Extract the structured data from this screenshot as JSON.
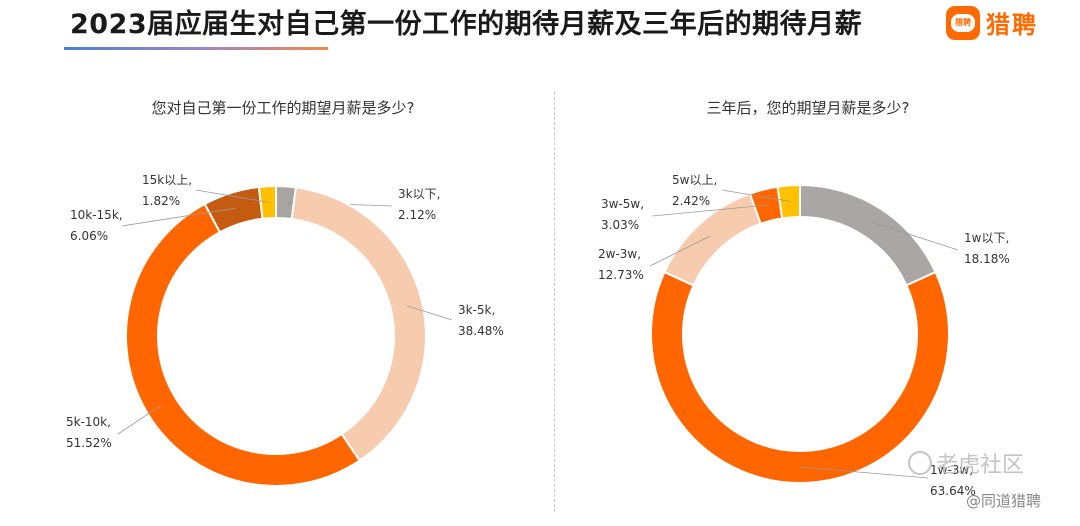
{
  "header": {
    "title": "2023届应届生对自己第一份工作的期待月薪及三年后的期待月薪",
    "logo_badge_text": "猎聘",
    "logo_text": "猎聘"
  },
  "watermarks": {
    "primary": "老虎社区",
    "secondary": "@同道猎聘"
  },
  "chart_data": [
    {
      "type": "pie",
      "title": "您对自己第一份工作的期望月薪是多少?",
      "slices": [
        {
          "label": "3k以下,",
          "value": 2.12,
          "value_label": "2.12%",
          "color": "#a8a4a2"
        },
        {
          "label": "3k-5k,",
          "value": 38.48,
          "value_label": "38.48%",
          "color": "#f7ccae"
        },
        {
          "label": "5k-10k,",
          "value": 51.52,
          "value_label": "51.52%",
          "color": "#ff6600"
        },
        {
          "label": "10k-15k,",
          "value": 6.06,
          "value_label": "6.06%",
          "color": "#c55a11"
        },
        {
          "label": "15k以上,",
          "value": 1.82,
          "value_label": "1.82%",
          "color": "#ffc000"
        }
      ]
    },
    {
      "type": "pie",
      "title": "三年后，您的期望月薪是多少?",
      "slices": [
        {
          "label": "1w以下,",
          "value": 18.18,
          "value_label": "18.18%",
          "color": "#aaa6a4"
        },
        {
          "label": "1w-3w,",
          "value": 63.64,
          "value_label": "63.64%",
          "color": "#ff6600"
        },
        {
          "label": "2w-3w,",
          "value": 12.73,
          "value_label": "12.73%",
          "color": "#f7ccae"
        },
        {
          "label": "3w-5w,",
          "value": 3.03,
          "value_label": "3.03%",
          "color": "#ff6600"
        },
        {
          "label": "5w以上,",
          "value": 2.42,
          "value_label": "2.42%",
          "color": "#ffc000"
        }
      ]
    }
  ]
}
